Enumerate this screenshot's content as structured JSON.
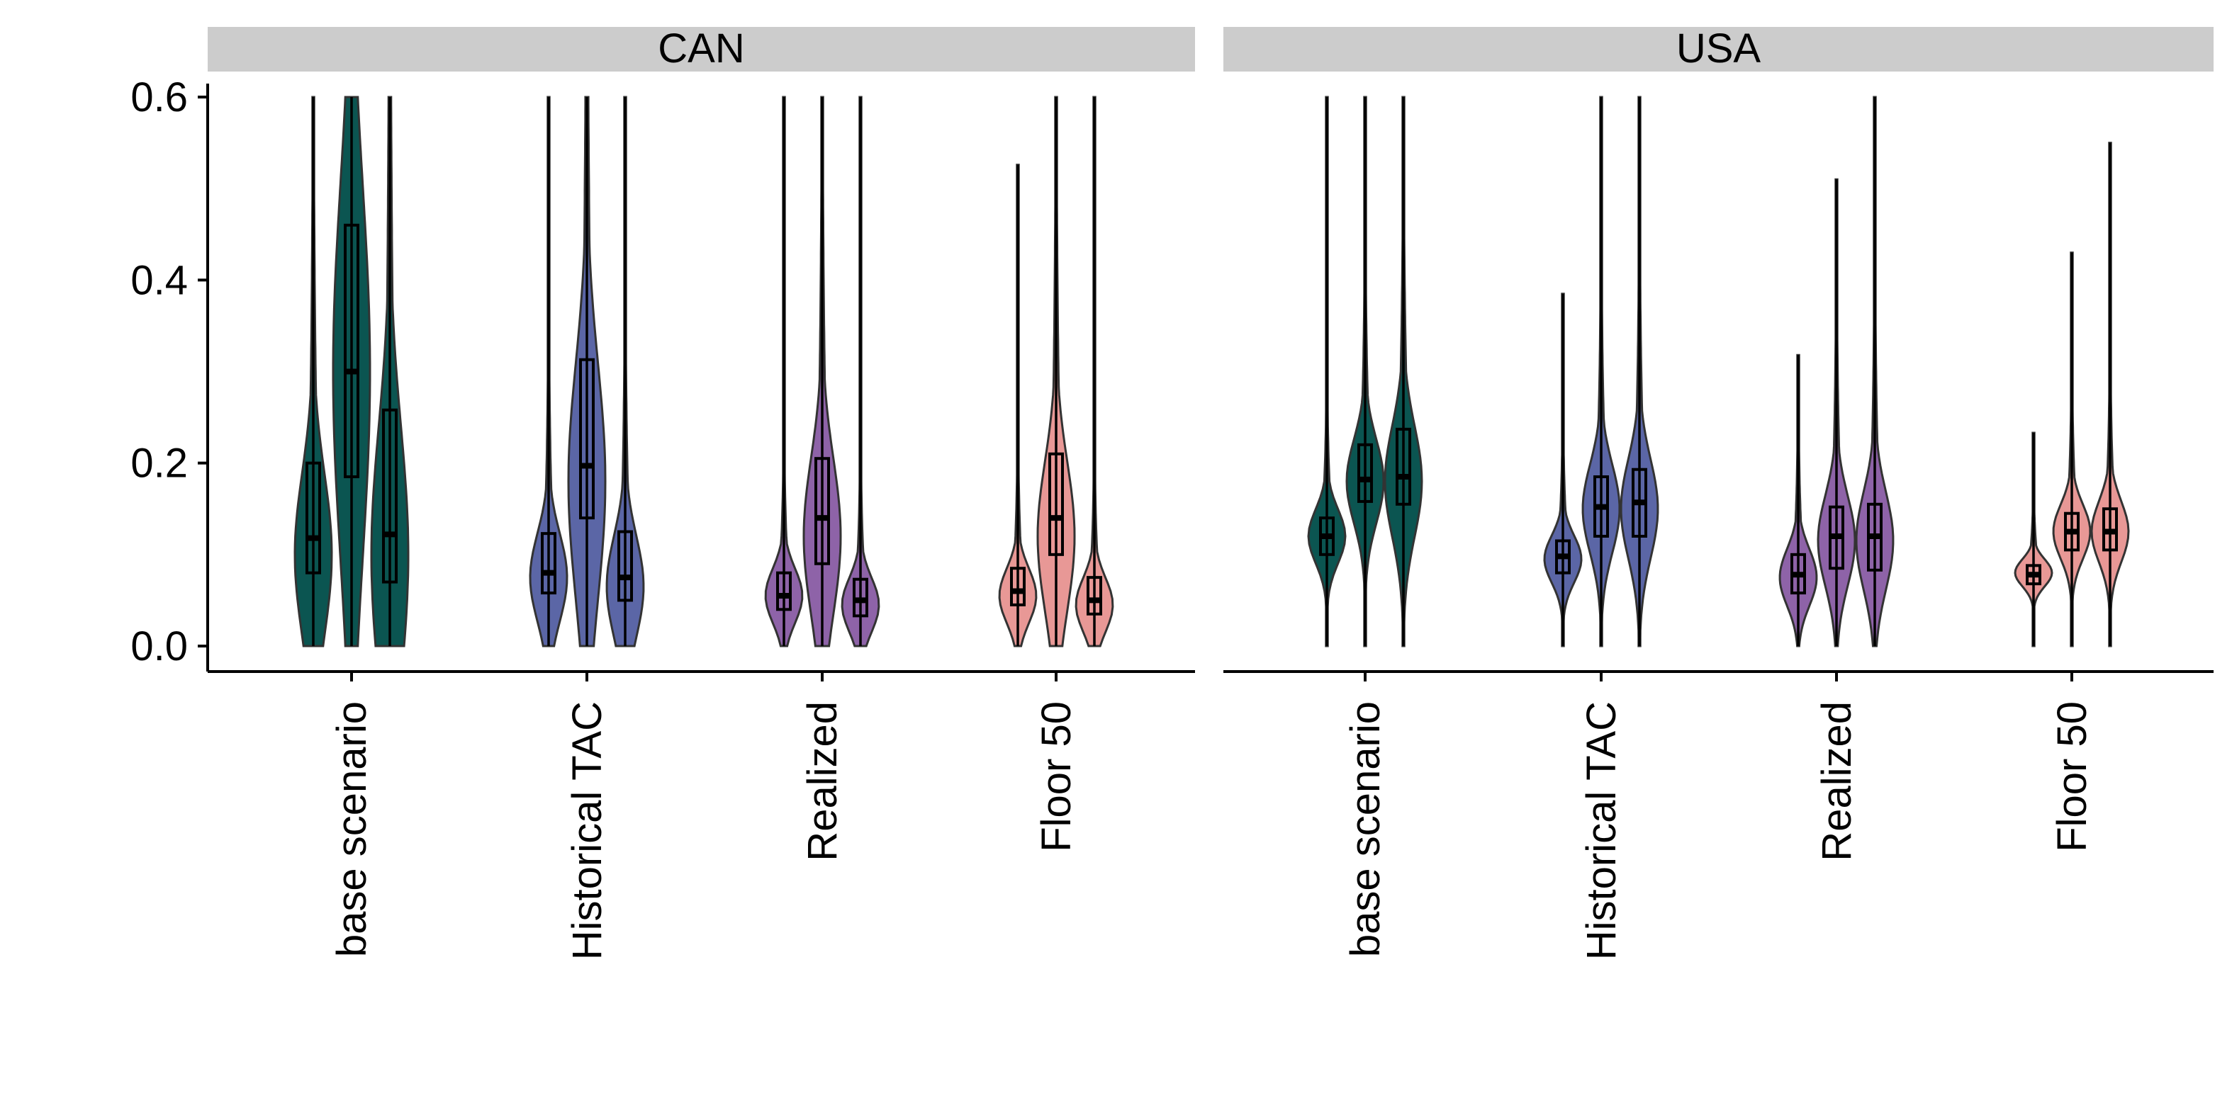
{
  "chart_data": {
    "type": "violin",
    "facets": [
      "CAN",
      "USA"
    ],
    "categories": [
      "base scenario",
      "Historical TAC",
      "Realized",
      "Floor 50"
    ],
    "ylim": [
      0,
      0.6
    ],
    "yticks": [
      "0.0",
      "0.2",
      "0.4",
      "0.6"
    ],
    "xlabel": "",
    "ylabel": "",
    "legend": "none",
    "grid": false,
    "colors": {
      "base scenario": "#0b5551",
      "Historical TAC": "#5b66a6",
      "Realized": "#8e63a8",
      "Floor 50": "#e89896"
    },
    "groups_per_category": 3,
    "panels": [
      {
        "facet": "CAN",
        "violins": [
          [
            {
              "median": 0.118,
              "q1": 0.08,
              "q3": 0.2,
              "min": 0.0,
              "max": 0.6,
              "mode": 0.1
            },
            {
              "median": 0.3,
              "q1": 0.185,
              "q3": 0.46,
              "min": 0.0,
              "max": 0.6,
              "mode": 0.3
            },
            {
              "median": 0.122,
              "q1": 0.07,
              "q3": 0.258,
              "min": 0.0,
              "max": 0.6,
              "mode": 0.1
            }
          ],
          [
            {
              "median": 0.08,
              "q1": 0.058,
              "q3": 0.123,
              "min": 0.0,
              "max": 0.6,
              "mode": 0.075
            },
            {
              "median": 0.197,
              "q1": 0.14,
              "q3": 0.313,
              "min": 0.0,
              "max": 0.6,
              "mode": 0.18
            },
            {
              "median": 0.075,
              "q1": 0.05,
              "q3": 0.125,
              "min": 0.0,
              "max": 0.6,
              "mode": 0.065
            }
          ],
          [
            {
              "median": 0.055,
              "q1": 0.04,
              "q3": 0.08,
              "min": 0.0,
              "max": 0.6,
              "mode": 0.055
            },
            {
              "median": 0.14,
              "q1": 0.09,
              "q3": 0.205,
              "min": 0.0,
              "max": 0.6,
              "mode": 0.12
            },
            {
              "median": 0.05,
              "q1": 0.033,
              "q3": 0.073,
              "min": 0.0,
              "max": 0.6,
              "mode": 0.045
            }
          ],
          [
            {
              "median": 0.06,
              "q1": 0.045,
              "q3": 0.085,
              "min": 0.0,
              "max": 0.526,
              "mode": 0.055
            },
            {
              "median": 0.14,
              "q1": 0.1,
              "q3": 0.21,
              "min": 0.0,
              "max": 0.6,
              "mode": 0.12
            },
            {
              "median": 0.05,
              "q1": 0.035,
              "q3": 0.075,
              "min": 0.0,
              "max": 0.6,
              "mode": 0.045
            }
          ]
        ]
      },
      {
        "facet": "USA",
        "violins": [
          [
            {
              "median": 0.12,
              "q1": 0.1,
              "q3": 0.14,
              "min": 0.0,
              "max": 0.6,
              "mode": 0.12
            },
            {
              "median": 0.182,
              "q1": 0.158,
              "q3": 0.22,
              "min": 0.0,
              "max": 0.6,
              "mode": 0.18
            },
            {
              "median": 0.185,
              "q1": 0.155,
              "q3": 0.237,
              "min": 0.0,
              "max": 0.6,
              "mode": 0.18
            }
          ],
          [
            {
              "median": 0.098,
              "q1": 0.08,
              "q3": 0.115,
              "min": 0.0,
              "max": 0.385,
              "mode": 0.095
            },
            {
              "median": 0.152,
              "q1": 0.12,
              "q3": 0.185,
              "min": 0.0,
              "max": 0.6,
              "mode": 0.15
            },
            {
              "median": 0.157,
              "q1": 0.12,
              "q3": 0.193,
              "min": 0.0,
              "max": 0.6,
              "mode": 0.15
            }
          ],
          [
            {
              "median": 0.078,
              "q1": 0.058,
              "q3": 0.1,
              "min": 0.0,
              "max": 0.318,
              "mode": 0.075
            },
            {
              "median": 0.12,
              "q1": 0.085,
              "q3": 0.152,
              "min": 0.0,
              "max": 0.51,
              "mode": 0.115
            },
            {
              "median": 0.12,
              "q1": 0.083,
              "q3": 0.155,
              "min": 0.0,
              "max": 0.6,
              "mode": 0.115
            }
          ],
          [
            {
              "median": 0.078,
              "q1": 0.068,
              "q3": 0.088,
              "min": 0.0,
              "max": 0.233,
              "mode": 0.08
            },
            {
              "median": 0.125,
              "q1": 0.105,
              "q3": 0.145,
              "min": 0.0,
              "max": 0.43,
              "mode": 0.125
            },
            {
              "median": 0.125,
              "q1": 0.105,
              "q3": 0.15,
              "min": 0.0,
              "max": 0.55,
              "mode": 0.125
            }
          ]
        ]
      }
    ]
  }
}
